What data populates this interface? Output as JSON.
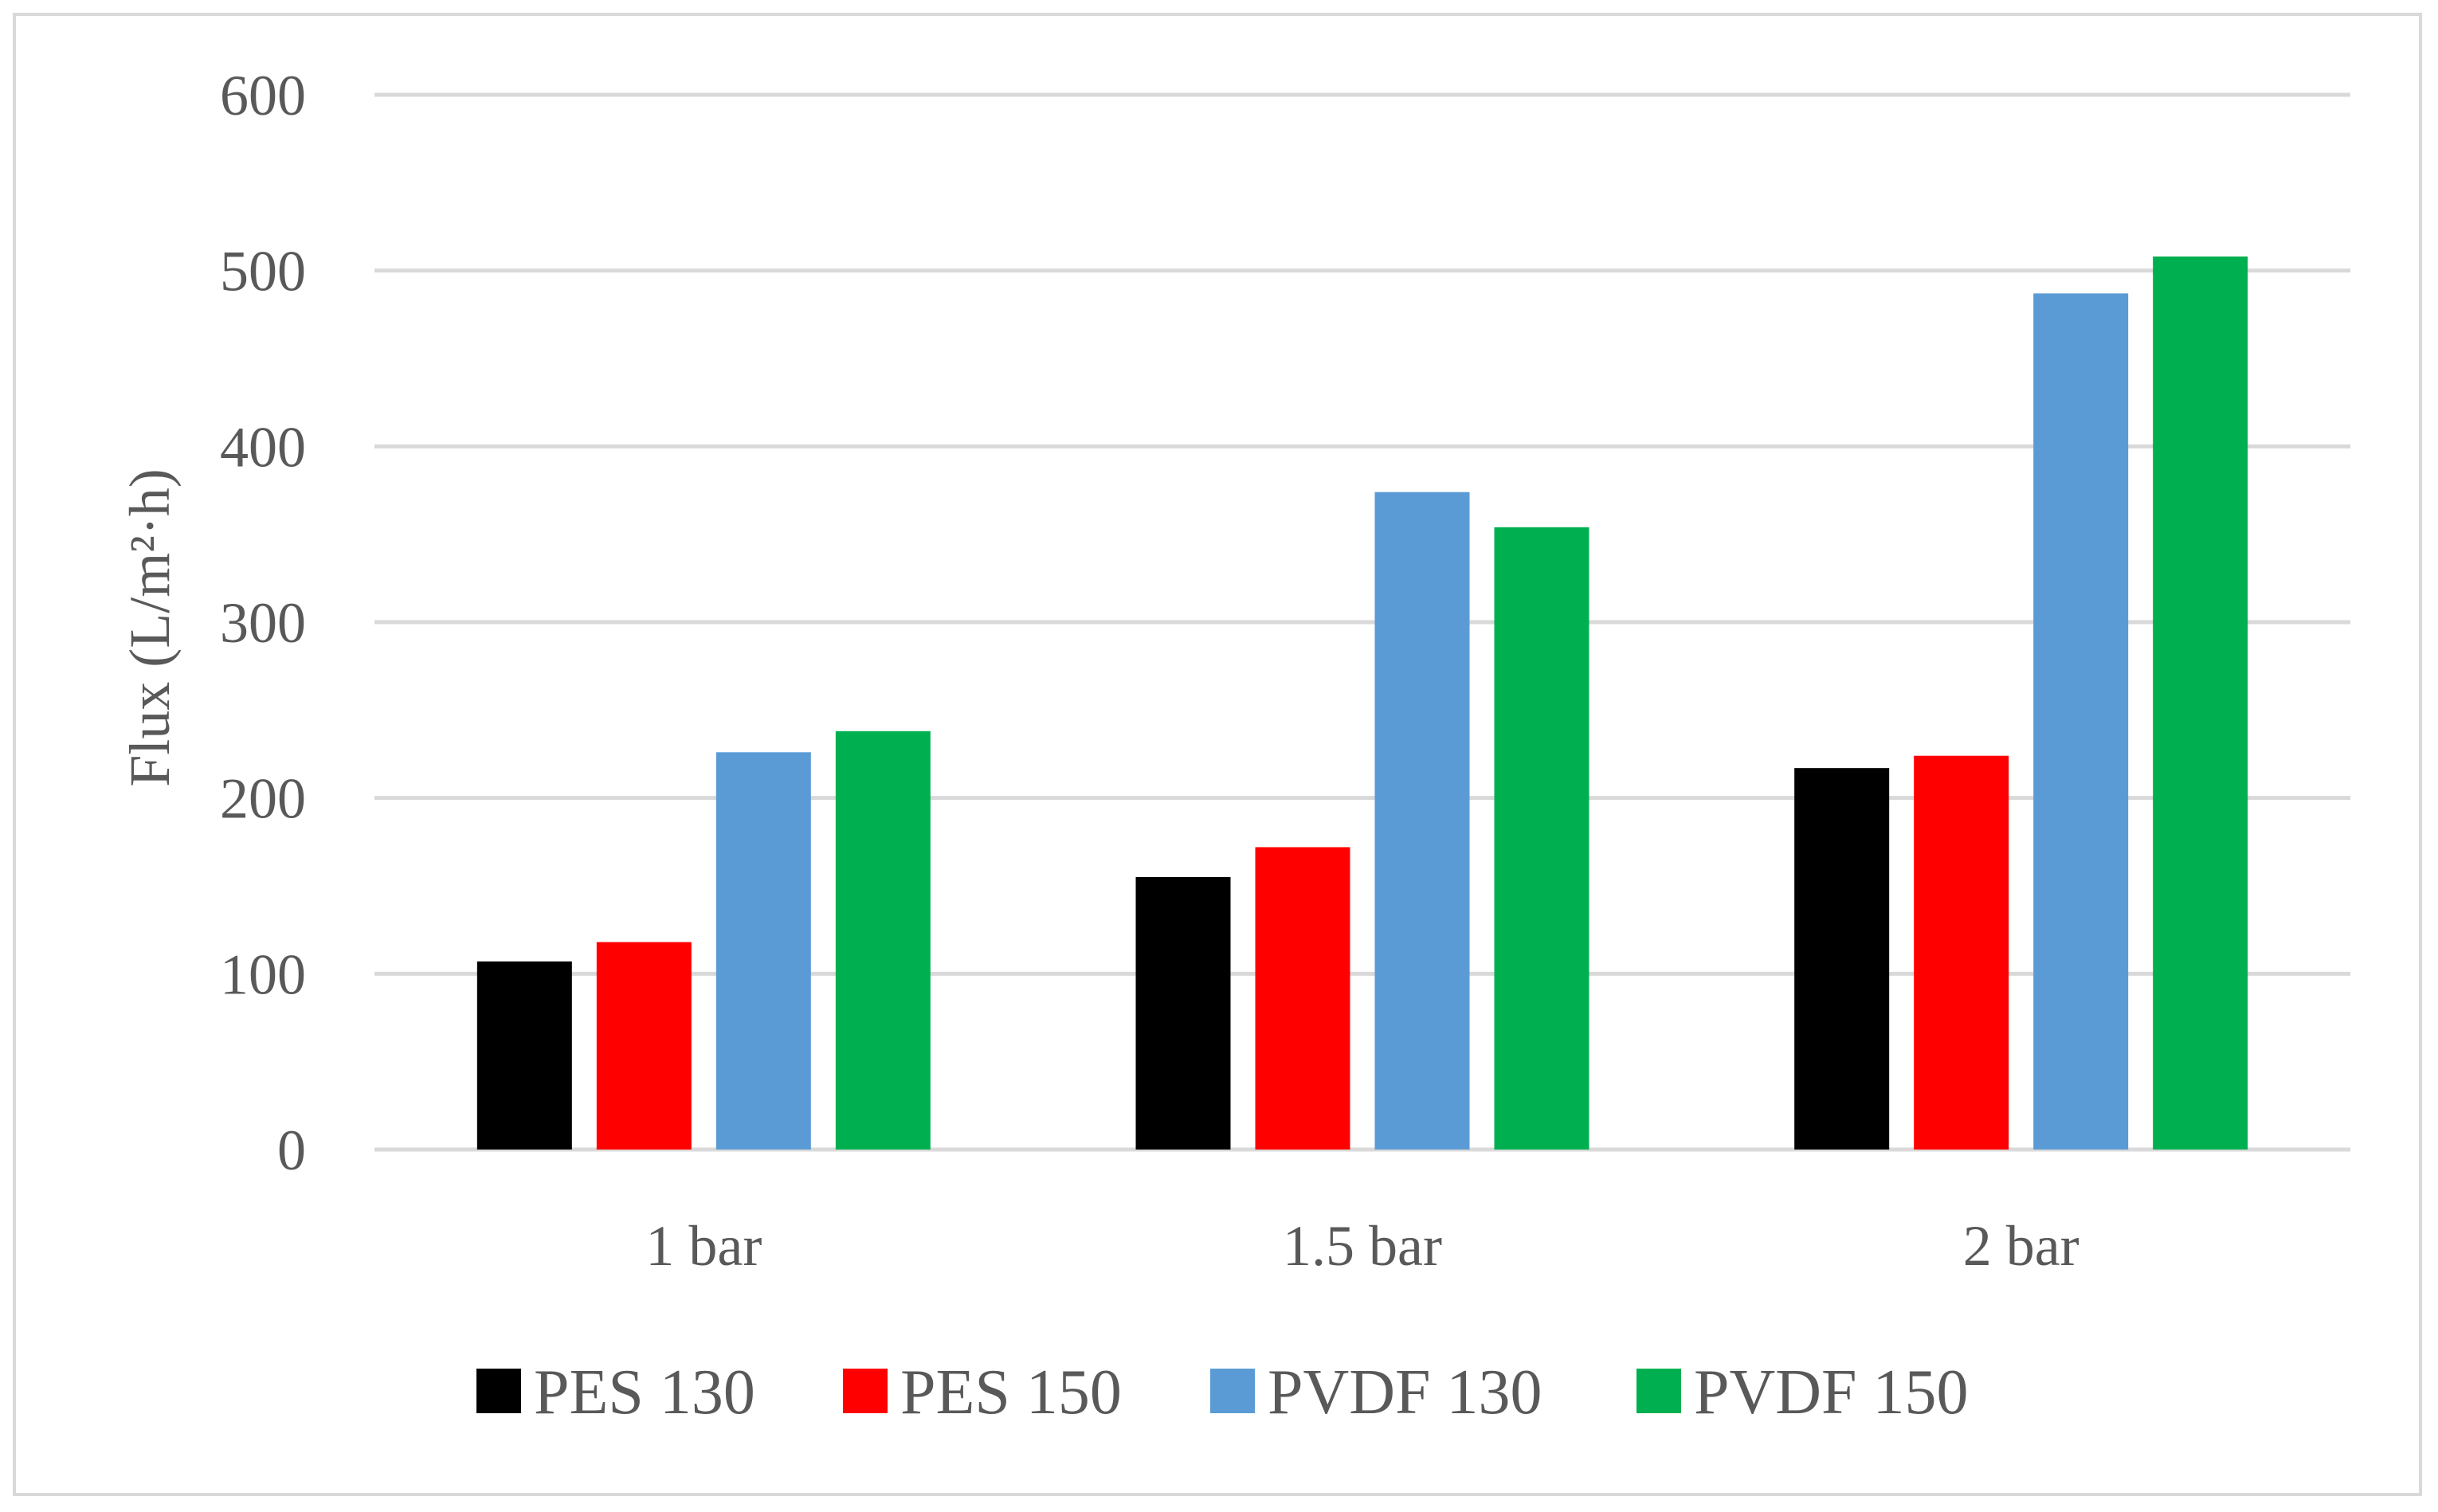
{
  "chart_data": {
    "type": "bar",
    "title": "",
    "xlabel": "",
    "ylabel": "Flux (L/m²·h)",
    "ylim": [
      0,
      600
    ],
    "yticks": [
      "0",
      "100",
      "200",
      "300",
      "400",
      "500",
      "600"
    ],
    "categories": [
      "1 bar",
      "1.5 bar",
      "2 bar"
    ],
    "grid": true,
    "legend_position": "bottom",
    "series": [
      {
        "name": "PES 130",
        "color": "#000000",
        "values": [
          107,
          155,
          217
        ]
      },
      {
        "name": "PES 150",
        "color": "#ff0000",
        "values": [
          118,
          172,
          224
        ]
      },
      {
        "name": "PVDF 130",
        "color": "#5b9bd5",
        "values": [
          226,
          374,
          487
        ]
      },
      {
        "name": "PVDF 150",
        "color": "#00b050",
        "values": [
          238,
          354,
          508
        ]
      }
    ]
  }
}
